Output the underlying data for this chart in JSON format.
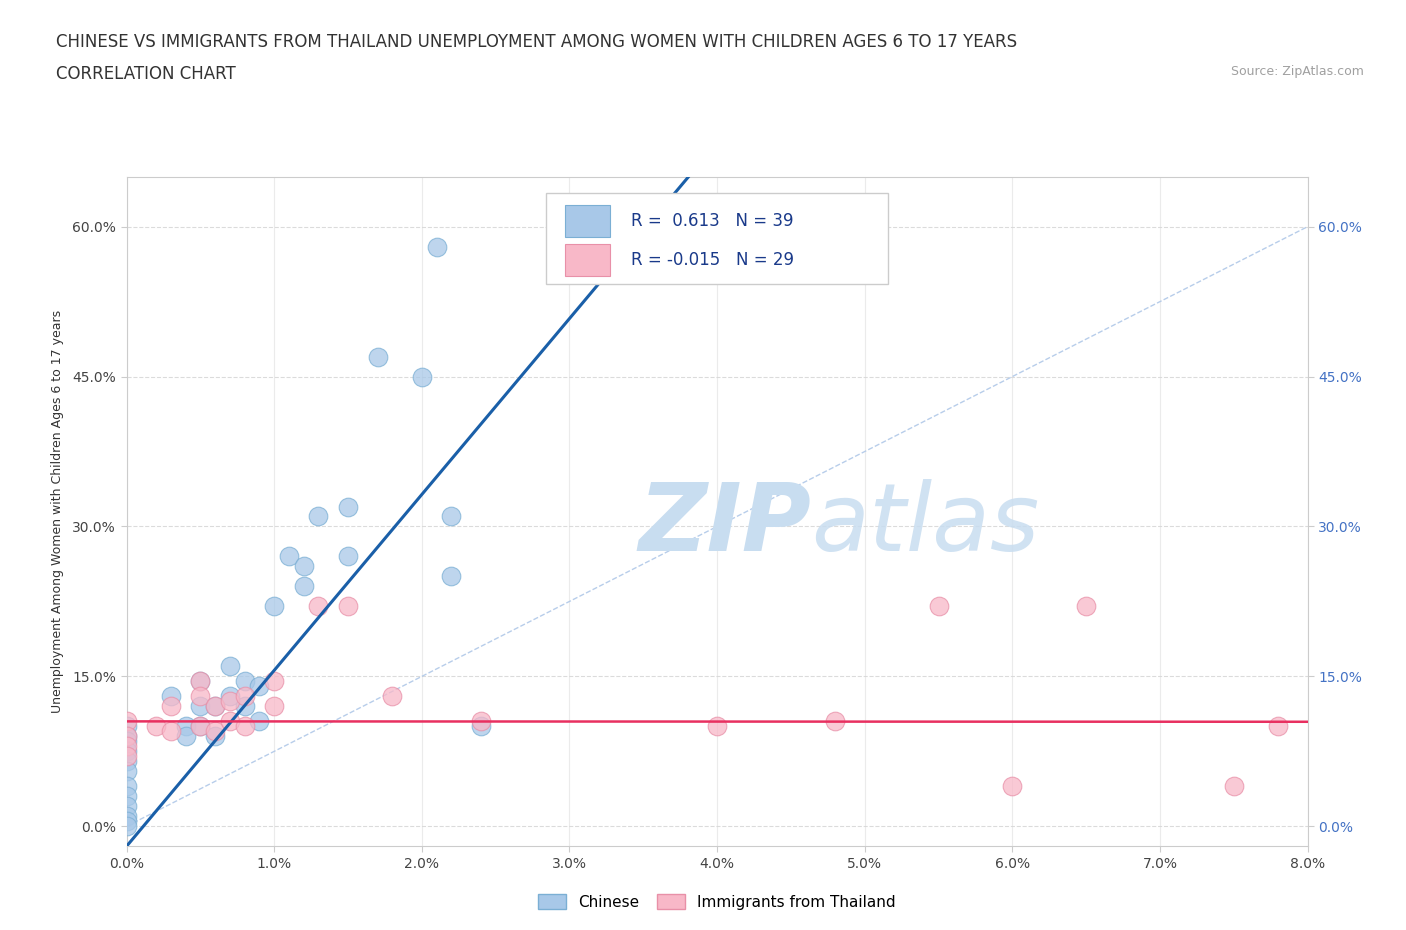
{
  "title_line1": "CHINESE VS IMMIGRANTS FROM THAILAND UNEMPLOYMENT AMONG WOMEN WITH CHILDREN AGES 6 TO 17 YEARS",
  "title_line2": "CORRELATION CHART",
  "source_text": "Source: ZipAtlas.com",
  "ylabel": "Unemployment Among Women with Children Ages 6 to 17 years",
  "x_tick_labels": [
    "0.0%",
    "1.0%",
    "2.0%",
    "3.0%",
    "4.0%",
    "5.0%",
    "6.0%",
    "7.0%",
    "8.0%"
  ],
  "y_tick_labels": [
    "0.0%",
    "15.0%",
    "30.0%",
    "45.0%",
    "60.0%"
  ],
  "x_range": [
    0.0,
    0.08
  ],
  "y_range": [
    -0.02,
    0.65
  ],
  "diagonal_line_color": "#b0c8e8",
  "chinese_color": "#a8c8e8",
  "chinese_edge_color": "#7bafd4",
  "thailand_color": "#f8b8c8",
  "thailand_edge_color": "#e890a8",
  "chinese_line_color": "#1a5fa8",
  "thailand_line_color": "#e83060",
  "R_chinese": 0.613,
  "N_chinese": 39,
  "R_thailand": -0.015,
  "N_thailand": 29,
  "legend_label_chinese": "Chinese",
  "legend_label_thailand": "Immigrants from Thailand",
  "background_color": "#ffffff",
  "grid_color": "#d8d8d8",
  "watermark_color": "#c8ddf0",
  "title_fontsize": 12,
  "subtitle_fontsize": 12,
  "axis_label_fontsize": 9,
  "tick_fontsize": 10,
  "legend_fontsize": 13,
  "chinese_points": [
    [
      0.0,
      0.1
    ],
    [
      0.0,
      0.09
    ],
    [
      0.0,
      0.085
    ],
    [
      0.0,
      0.075
    ],
    [
      0.0,
      0.065
    ],
    [
      0.0,
      0.055
    ],
    [
      0.0,
      0.04
    ],
    [
      0.0,
      0.03
    ],
    [
      0.0,
      0.02
    ],
    [
      0.0,
      0.01
    ],
    [
      0.0,
      0.005
    ],
    [
      0.0,
      0.0
    ],
    [
      0.003,
      0.13
    ],
    [
      0.004,
      0.1
    ],
    [
      0.004,
      0.09
    ],
    [
      0.005,
      0.145
    ],
    [
      0.005,
      0.12
    ],
    [
      0.005,
      0.1
    ],
    [
      0.006,
      0.12
    ],
    [
      0.006,
      0.09
    ],
    [
      0.007,
      0.16
    ],
    [
      0.007,
      0.13
    ],
    [
      0.008,
      0.145
    ],
    [
      0.008,
      0.12
    ],
    [
      0.009,
      0.14
    ],
    [
      0.009,
      0.105
    ],
    [
      0.01,
      0.22
    ],
    [
      0.011,
      0.27
    ],
    [
      0.012,
      0.24
    ],
    [
      0.012,
      0.26
    ],
    [
      0.013,
      0.31
    ],
    [
      0.015,
      0.32
    ],
    [
      0.015,
      0.27
    ],
    [
      0.017,
      0.47
    ],
    [
      0.02,
      0.45
    ],
    [
      0.021,
      0.58
    ],
    [
      0.022,
      0.31
    ],
    [
      0.022,
      0.25
    ],
    [
      0.024,
      0.1
    ]
  ],
  "thailand_points": [
    [
      0.0,
      0.105
    ],
    [
      0.0,
      0.09
    ],
    [
      0.0,
      0.08
    ],
    [
      0.0,
      0.07
    ],
    [
      0.002,
      0.1
    ],
    [
      0.003,
      0.12
    ],
    [
      0.003,
      0.095
    ],
    [
      0.005,
      0.145
    ],
    [
      0.005,
      0.13
    ],
    [
      0.005,
      0.1
    ],
    [
      0.006,
      0.12
    ],
    [
      0.006,
      0.095
    ],
    [
      0.007,
      0.125
    ],
    [
      0.007,
      0.105
    ],
    [
      0.008,
      0.13
    ],
    [
      0.008,
      0.1
    ],
    [
      0.01,
      0.145
    ],
    [
      0.01,
      0.12
    ],
    [
      0.013,
      0.22
    ],
    [
      0.015,
      0.22
    ],
    [
      0.018,
      0.13
    ],
    [
      0.024,
      0.105
    ],
    [
      0.04,
      0.1
    ],
    [
      0.048,
      0.105
    ],
    [
      0.055,
      0.22
    ],
    [
      0.06,
      0.04
    ],
    [
      0.065,
      0.22
    ],
    [
      0.075,
      0.04
    ],
    [
      0.078,
      0.1
    ]
  ]
}
